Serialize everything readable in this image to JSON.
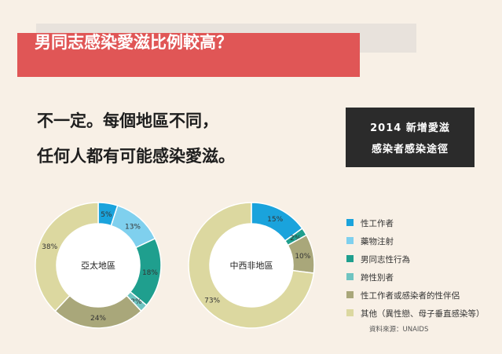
{
  "title": "男同志感染愛滋比例較高？",
  "headline": {
    "line1": "不一定。每個地區不同，",
    "line2": "任何人都有可能感染愛滋。"
  },
  "box": {
    "line1": "2014 新增愛滋",
    "line2": "感染者感染途徑"
  },
  "colors": {
    "sex_worker": "#1aa3dc",
    "drug_injection": "#7fd0ee",
    "msm": "#1f9f8e",
    "transgender": "#6fc4c1",
    "partners": "#a9a77a",
    "other": "#dcd8a0"
  },
  "legend": [
    {
      "key": "sex_worker",
      "label": "性工作者"
    },
    {
      "key": "drug_injection",
      "label": "藥物注射"
    },
    {
      "key": "msm",
      "label": "男同志性行為"
    },
    {
      "key": "transgender",
      "label": "跨性別者"
    },
    {
      "key": "partners",
      "label": "性工作者或感染者的性伴侶"
    },
    {
      "key": "other",
      "label": "其他（異性戀、母子垂直感染等）"
    }
  ],
  "source": "資料來源：UNAIDS",
  "chart_data": [
    {
      "type": "pie",
      "center_label": "亞太地區",
      "slices": [
        {
          "key": "sex_worker",
          "value": 5,
          "label": "5%"
        },
        {
          "key": "drug_injection",
          "value": 13,
          "label": "13%"
        },
        {
          "key": "msm",
          "value": 18,
          "label": "18%"
        },
        {
          "key": "transgender",
          "value": 2,
          "label": "2%"
        },
        {
          "key": "partners",
          "value": 24,
          "label": "24%"
        },
        {
          "key": "other",
          "value": 38,
          "label": "38%"
        }
      ]
    },
    {
      "type": "pie",
      "center_label": "中西非地區",
      "slices": [
        {
          "key": "sex_worker",
          "value": 15,
          "label": "15%"
        },
        {
          "key": "msm",
          "value": 2,
          "label": "2%"
        },
        {
          "key": "partners",
          "value": 10,
          "label": "10%"
        },
        {
          "key": "other",
          "value": 73,
          "label": "73%"
        }
      ]
    }
  ]
}
